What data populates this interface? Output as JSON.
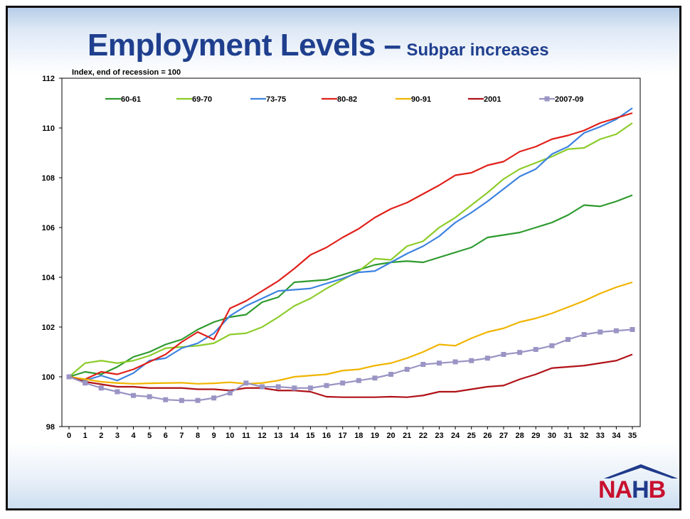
{
  "title": "Employment Levels –",
  "title_sub": "Subpar increases",
  "chart_data": {
    "type": "line",
    "title": "",
    "ylabel": "Index, end of recession = 100",
    "xlabel": "",
    "ylim": [
      98,
      112
    ],
    "xlim": [
      0,
      35
    ],
    "yticks": [
      98,
      100,
      102,
      104,
      106,
      108,
      110,
      112
    ],
    "x": [
      0,
      1,
      2,
      3,
      4,
      5,
      6,
      7,
      8,
      9,
      10,
      11,
      12,
      13,
      14,
      15,
      16,
      17,
      18,
      19,
      20,
      21,
      22,
      23,
      24,
      25,
      26,
      27,
      28,
      29,
      30,
      31,
      32,
      33,
      34,
      35
    ],
    "legend_position": "top",
    "grid": false,
    "series": [
      {
        "name": "60-61",
        "color": "#2e9a2e",
        "marker": "none",
        "values": [
          100,
          100.2,
          100.1,
          100.4,
          100.8,
          101.0,
          101.3,
          101.5,
          101.9,
          102.2,
          102.4,
          102.5,
          103.0,
          103.2,
          103.8,
          103.85,
          103.9,
          104.1,
          104.3,
          104.5,
          104.6,
          104.65,
          104.6,
          104.8,
          105.0,
          105.2,
          105.6,
          105.7,
          105.8,
          106.0,
          106.2,
          106.5,
          106.9,
          106.85,
          107.05,
          107.3
        ]
      },
      {
        "name": "69-70",
        "color": "#8ccc2a",
        "marker": "none",
        "values": [
          100,
          100.55,
          100.65,
          100.55,
          100.65,
          100.85,
          101.15,
          101.2,
          101.25,
          101.35,
          101.7,
          101.75,
          102.0,
          102.4,
          102.85,
          103.15,
          103.55,
          103.9,
          104.25,
          104.75,
          104.7,
          105.25,
          105.45,
          106.0,
          106.4,
          106.9,
          107.4,
          107.95,
          108.35,
          108.6,
          108.85,
          109.15,
          109.2,
          109.55,
          109.75,
          110.2
        ]
      },
      {
        "name": "73-75",
        "color": "#3d82e0",
        "marker": "none",
        "values": [
          100,
          99.85,
          100.05,
          99.85,
          100.15,
          100.65,
          100.75,
          101.15,
          101.35,
          101.75,
          102.45,
          102.85,
          103.15,
          103.45,
          103.5,
          103.55,
          103.75,
          103.95,
          104.2,
          104.25,
          104.6,
          104.95,
          105.25,
          105.65,
          106.2,
          106.6,
          107.05,
          107.55,
          108.05,
          108.35,
          108.95,
          109.25,
          109.8,
          110.05,
          110.35,
          110.8
        ]
      },
      {
        "name": "80-82",
        "color": "#e0201a",
        "marker": "none",
        "values": [
          100,
          99.9,
          100.2,
          100.1,
          100.3,
          100.6,
          100.9,
          101.4,
          101.8,
          101.5,
          102.75,
          103.05,
          103.45,
          103.85,
          104.35,
          104.9,
          105.2,
          105.6,
          105.95,
          106.4,
          106.75,
          107.0,
          107.35,
          107.7,
          108.1,
          108.2,
          108.5,
          108.65,
          109.05,
          109.25,
          109.55,
          109.7,
          109.9,
          110.2,
          110.4,
          110.6
        ]
      },
      {
        "name": "90-91",
        "color": "#f0b400",
        "marker": "none",
        "values": [
          100,
          99.9,
          99.8,
          99.75,
          99.72,
          99.74,
          99.75,
          99.76,
          99.72,
          99.74,
          99.78,
          99.72,
          99.75,
          99.85,
          100.0,
          100.05,
          100.1,
          100.25,
          100.3,
          100.45,
          100.55,
          100.75,
          101.0,
          101.3,
          101.25,
          101.55,
          101.8,
          101.95,
          102.2,
          102.35,
          102.55,
          102.8,
          103.05,
          103.35,
          103.6,
          103.8
        ]
      },
      {
        "name": "2001",
        "color": "#b01218",
        "marker": "none",
        "values": [
          100,
          99.8,
          99.7,
          99.6,
          99.6,
          99.55,
          99.55,
          99.55,
          99.5,
          99.5,
          99.45,
          99.55,
          99.55,
          99.45,
          99.45,
          99.4,
          99.2,
          99.18,
          99.18,
          99.18,
          99.2,
          99.18,
          99.25,
          99.4,
          99.4,
          99.5,
          99.6,
          99.65,
          99.9,
          100.1,
          100.35,
          100.4,
          100.45,
          100.55,
          100.65,
          100.9
        ]
      },
      {
        "name": "2007-09",
        "color": "#9a95c4",
        "marker": "square",
        "values": [
          100,
          99.75,
          99.55,
          99.4,
          99.25,
          99.2,
          99.08,
          99.05,
          99.05,
          99.15,
          99.35,
          99.75,
          99.6,
          99.6,
          99.55,
          99.55,
          99.65,
          99.75,
          99.85,
          99.95,
          100.1,
          100.3,
          100.5,
          100.55,
          100.6,
          100.65,
          100.75,
          100.9,
          100.98,
          101.1,
          101.25,
          101.5,
          101.7,
          101.8,
          101.85,
          101.9
        ]
      }
    ]
  },
  "logo": {
    "text_na": "NA",
    "text_h": "H",
    "text_b": "B"
  }
}
